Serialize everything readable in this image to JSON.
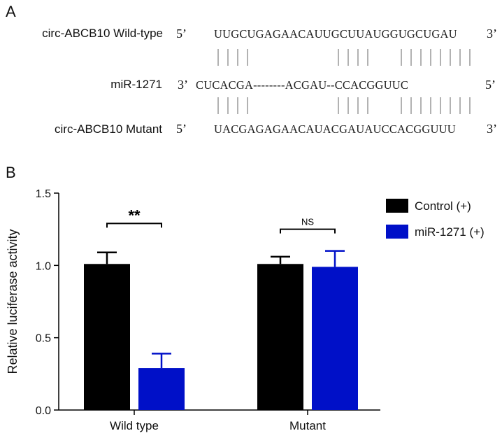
{
  "panel_a": {
    "letter": "A",
    "rows": [
      {
        "label": "circ-ABCB10 Wild-type",
        "left_end": "5’",
        "sequence": "UUGCUGAGAACAUUGCUUAUGGUGCUGAU",
        "right_end": "3’"
      },
      {
        "label": "miR-1271",
        "left_end": "3’",
        "sequence": "CUCACGA--------ACGAU--CCACGGUUC",
        "right_end": "5’"
      },
      {
        "label": "circ-ABCB10 Mutant",
        "left_end": "5’",
        "sequence": "UACGAGAGAACAUACGAUAUCCACGGUUU",
        "right_end": "3’"
      }
    ],
    "pair_groups": [
      4,
      4,
      8
    ]
  },
  "panel_b": {
    "letter": "B"
  },
  "chart_data": {
    "type": "bar",
    "title": "",
    "xlabel": "",
    "ylabel": "Relative luciferase activity",
    "ylim": [
      0,
      1.5
    ],
    "yticks": [
      "0.0",
      "0.5",
      "1.0",
      "1.5"
    ],
    "categories": [
      "Wild type",
      "Mutant"
    ],
    "series": [
      {
        "name": "Control (+)",
        "color": "#000000",
        "values": [
          1.01,
          1.01
        ],
        "errors": [
          0.08,
          0.05
        ]
      },
      {
        "name": "miR-1271 (+)",
        "color": "#0010c8",
        "values": [
          0.29,
          0.99
        ],
        "errors": [
          0.1,
          0.11
        ]
      }
    ],
    "significance": [
      {
        "category": "Wild type",
        "label": "**"
      },
      {
        "category": "Mutant",
        "label": "NS"
      }
    ],
    "legend_position": "top-right",
    "grid": false
  }
}
